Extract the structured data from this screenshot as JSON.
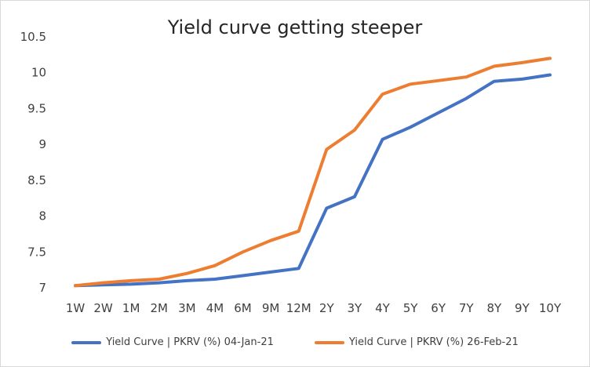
{
  "chart_data": {
    "type": "line",
    "title": "Yield curve getting steeper",
    "xlabel": "",
    "ylabel": "",
    "categories": [
      "1W",
      "2W",
      "1M",
      "2M",
      "3M",
      "4M",
      "6M",
      "9M",
      "12M",
      "2Y",
      "3Y",
      "4Y",
      "5Y",
      "6Y",
      "7Y",
      "8Y",
      "9Y",
      "10Y"
    ],
    "ylim": [
      7,
      10.5
    ],
    "yticks": [
      "7",
      "7.5",
      "8",
      "8.5",
      "9",
      "9.5",
      "10",
      "10.5"
    ],
    "grid": false,
    "legend_position": "bottom",
    "series": [
      {
        "name": "Yield Curve | PKRV (%) 04-Jan-21",
        "color": "#4472c4",
        "values": [
          7.03,
          7.04,
          7.05,
          7.07,
          7.1,
          7.12,
          7.17,
          7.22,
          7.27,
          8.11,
          8.27,
          9.07,
          9.24,
          9.44,
          9.64,
          9.88,
          9.91,
          9.97
        ]
      },
      {
        "name": "Yield Curve | PKRV (%) 26-Feb-21",
        "color": "#ed7d31",
        "values": [
          7.03,
          7.07,
          7.1,
          7.12,
          7.2,
          7.31,
          7.5,
          7.66,
          7.79,
          8.93,
          9.2,
          9.7,
          9.84,
          9.89,
          9.94,
          10.09,
          10.14,
          10.2
        ]
      }
    ]
  }
}
